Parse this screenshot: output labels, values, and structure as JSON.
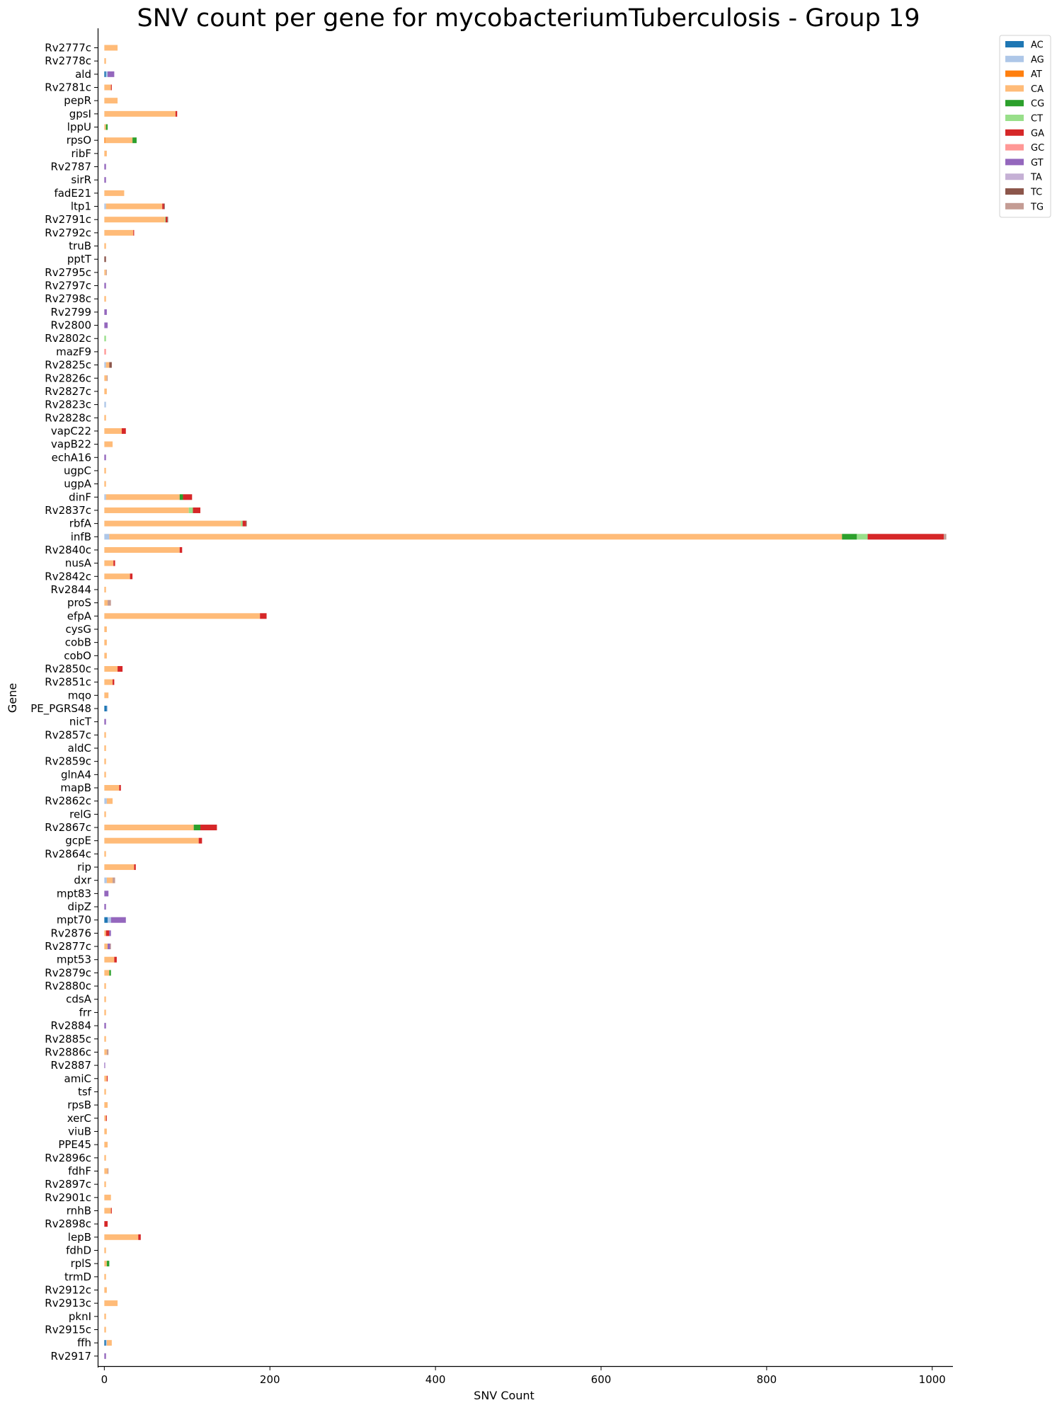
{
  "chart_data": {
    "type": "bar",
    "orientation": "horizontal",
    "stacked": true,
    "title": "SNV count per gene for mycobacteriumTuberculosis - Group 19",
    "xlabel": "SNV Count",
    "ylabel": "Gene",
    "xlim": [
      -8,
      1025
    ],
    "xticks": [
      0,
      200,
      400,
      600,
      800,
      1000
    ],
    "grid": false,
    "legend_position": "top-right",
    "series": [
      {
        "name": "AC",
        "color": "#1f77b4"
      },
      {
        "name": "AG",
        "color": "#aec7e8"
      },
      {
        "name": "AT",
        "color": "#ff7f0e"
      },
      {
        "name": "CA",
        "color": "#ffbb78"
      },
      {
        "name": "CG",
        "color": "#2ca02c"
      },
      {
        "name": "CT",
        "color": "#98df8a"
      },
      {
        "name": "GA",
        "color": "#d62728"
      },
      {
        "name": "GC",
        "color": "#ff9896"
      },
      {
        "name": "GT",
        "color": "#9467bd"
      },
      {
        "name": "TA",
        "color": "#c5b0d5"
      },
      {
        "name": "TC",
        "color": "#8c564b"
      },
      {
        "name": "TG",
        "color": "#c49c94"
      }
    ],
    "categories": [
      {
        "gene": "Rv2777c",
        "values": {
          "CA": 16
        }
      },
      {
        "gene": "Rv2778c",
        "values": {
          "CA": 2
        }
      },
      {
        "gene": "ald",
        "values": {
          "AC": 2,
          "AG": 2,
          "GT": 8
        }
      },
      {
        "gene": "Rv2781c",
        "values": {
          "CA": 8,
          "GA": 1
        }
      },
      {
        "gene": "pepR",
        "values": {
          "CA": 16
        }
      },
      {
        "gene": "gpsI",
        "values": {
          "CA": 86,
          "GA": 2
        }
      },
      {
        "gene": "lppU",
        "values": {
          "CA": 2,
          "CG": 2
        }
      },
      {
        "gene": "rpsO",
        "values": {
          "AT": 1,
          "CA": 33,
          "CG": 5
        }
      },
      {
        "gene": "ribF",
        "values": {
          "CA": 3
        }
      },
      {
        "gene": "Rv2787",
        "values": {
          "GT": 2
        }
      },
      {
        "gene": "sirR",
        "values": {
          "GT": 2
        }
      },
      {
        "gene": "fadE21",
        "values": {
          "CA": 24
        }
      },
      {
        "gene": "ltp1",
        "values": {
          "AG": 2,
          "CA": 68,
          "GA": 2,
          "TC": 1
        }
      },
      {
        "gene": "Rv2791c",
        "values": {
          "CA": 73,
          "CT": 1,
          "GA": 2,
          "TC": 1
        }
      },
      {
        "gene": "Rv2792c",
        "values": {
          "CA": 35,
          "GA": 1
        }
      },
      {
        "gene": "truB",
        "values": {
          "CA": 2
        }
      },
      {
        "gene": "pptT",
        "values": {
          "TC": 2
        }
      },
      {
        "gene": "Rv2795c",
        "values": {
          "CA": 2,
          "TG": 1
        }
      },
      {
        "gene": "Rv2797c",
        "values": {
          "GT": 2
        }
      },
      {
        "gene": "Rv2798c",
        "values": {
          "CA": 2
        }
      },
      {
        "gene": "Rv2799",
        "values": {
          "GT": 3
        }
      },
      {
        "gene": "Rv2800",
        "values": {
          "GT": 4
        }
      },
      {
        "gene": "Rv2802c",
        "values": {
          "CT": 2
        }
      },
      {
        "gene": "mazF9",
        "values": {
          "GC": 2
        }
      },
      {
        "gene": "Rv2825c",
        "values": {
          "AG": 2,
          "CA": 4,
          "TC": 3
        }
      },
      {
        "gene": "Rv2826c",
        "values": {
          "CA": 3,
          "TG": 1
        }
      },
      {
        "gene": "Rv2827c",
        "values": {
          "CA": 3
        }
      },
      {
        "gene": "Rv2823c",
        "values": {
          "AG": 2
        }
      },
      {
        "gene": "Rv2828c",
        "values": {
          "CA": 2
        }
      },
      {
        "gene": "vapC22",
        "values": {
          "CA": 21,
          "GA": 5
        }
      },
      {
        "gene": "vapB22",
        "values": {
          "CA": 10
        }
      },
      {
        "gene": "echA16",
        "values": {
          "GT": 2
        }
      },
      {
        "gene": "ugpC",
        "values": {
          "CA": 2
        }
      },
      {
        "gene": "ugpA",
        "values": {
          "CA": 2
        }
      },
      {
        "gene": "dinF",
        "values": {
          "AG": 2,
          "CA": 89,
          "CG": 4,
          "GA": 11
        }
      },
      {
        "gene": "Rv2837c",
        "values": {
          "CA": 102,
          "CT": 5,
          "GA": 9
        }
      },
      {
        "gene": "rbfA",
        "values": {
          "CA": 165,
          "CT": 2,
          "GA": 4,
          "TC": 1
        }
      },
      {
        "gene": "infB",
        "values": {
          "AG": 6,
          "CA": 885,
          "CG": 18,
          "CT": 13,
          "GA": 92,
          "TG": 3
        }
      },
      {
        "gene": "Rv2840c",
        "values": {
          "CA": 91,
          "GA": 3
        }
      },
      {
        "gene": "nusA",
        "values": {
          "CA": 11,
          "GA": 2
        }
      },
      {
        "gene": "Rv2842c",
        "values": {
          "CA": 31,
          "GA": 3
        }
      },
      {
        "gene": "Rv2844",
        "values": {
          "CA": 2
        }
      },
      {
        "gene": "proS",
        "values": {
          "CA": 4,
          "TG": 4
        }
      },
      {
        "gene": "efpA",
        "values": {
          "CA": 188,
          "GA": 8
        }
      },
      {
        "gene": "cysG",
        "values": {
          "CA": 3
        }
      },
      {
        "gene": "cobB",
        "values": {
          "CA": 3
        }
      },
      {
        "gene": "cobO",
        "values": {
          "CA": 3
        }
      },
      {
        "gene": "Rv2850c",
        "values": {
          "CA": 16,
          "GA": 6
        }
      },
      {
        "gene": "Rv2851c",
        "values": {
          "CA": 10,
          "GA": 2
        }
      },
      {
        "gene": "mqo",
        "values": {
          "CA": 5
        }
      },
      {
        "gene": "PE_PGRS48",
        "values": {
          "AC": 3,
          "AG": 1
        }
      },
      {
        "gene": "nicT",
        "values": {
          "GT": 2
        }
      },
      {
        "gene": "Rv2857c",
        "values": {
          "CA": 2
        }
      },
      {
        "gene": "aldC",
        "values": {
          "CA": 2
        }
      },
      {
        "gene": "Rv2859c",
        "values": {
          "CA": 2
        }
      },
      {
        "gene": "glnA4",
        "values": {
          "CA": 2
        }
      },
      {
        "gene": "mapB",
        "values": {
          "CA": 18,
          "GA": 2
        }
      },
      {
        "gene": "Rv2862c",
        "values": {
          "AG": 3,
          "CA": 7
        }
      },
      {
        "gene": "relG",
        "values": {
          "CA": 2
        }
      },
      {
        "gene": "Rv2867c",
        "values": {
          "CA": 108,
          "CG": 8,
          "GA": 20
        }
      },
      {
        "gene": "gcpE",
        "values": {
          "CA": 114,
          "GA": 4
        }
      },
      {
        "gene": "Rv2864c",
        "values": {
          "CA": 2
        }
      },
      {
        "gene": "rip",
        "values": {
          "CA": 36,
          "GA": 2
        }
      },
      {
        "gene": "dxr",
        "values": {
          "CA": 7,
          "AG": 3,
          "TG": 3
        }
      },
      {
        "gene": "mpt83",
        "values": {
          "GT": 5
        }
      },
      {
        "gene": "dipZ",
        "values": {
          "GT": 2
        }
      },
      {
        "gene": "mpt70",
        "values": {
          "AC": 4,
          "AG": 4,
          "GT": 18
        }
      },
      {
        "gene": "Rv2876",
        "values": {
          "CA": 2,
          "GA": 4,
          "GT": 2
        }
      },
      {
        "gene": "Rv2877c",
        "values": {
          "CA": 4,
          "GT": 3,
          "TG": 1
        }
      },
      {
        "gene": "mpt53",
        "values": {
          "CA": 12,
          "GA": 3
        }
      },
      {
        "gene": "Rv2879c",
        "values": {
          "CA": 6,
          "CG": 2
        }
      },
      {
        "gene": "Rv2880c",
        "values": {
          "CA": 2
        }
      },
      {
        "gene": "cdsA",
        "values": {
          "CA": 2
        }
      },
      {
        "gene": "frr",
        "values": {
          "CA": 2
        }
      },
      {
        "gene": "Rv2884",
        "values": {
          "GT": 2
        }
      },
      {
        "gene": "Rv2885c",
        "values": {
          "CA": 2
        }
      },
      {
        "gene": "Rv2886c",
        "values": {
          "CA": 3,
          "TG": 2
        }
      },
      {
        "gene": "Rv2887",
        "values": {
          "GT": 1
        }
      },
      {
        "gene": "amiC",
        "values": {
          "CA": 3,
          "GA": 1
        }
      },
      {
        "gene": "tsf",
        "values": {
          "CA": 2
        }
      },
      {
        "gene": "rpsB",
        "values": {
          "CA": 4
        }
      },
      {
        "gene": "xerC",
        "values": {
          "CA": 2,
          "GA": 1
        }
      },
      {
        "gene": "viuB",
        "values": {
          "CA": 3
        }
      },
      {
        "gene": "PPE45",
        "values": {
          "CA": 4
        }
      },
      {
        "gene": "Rv2896c",
        "values": {
          "CA": 2
        }
      },
      {
        "gene": "fdhF",
        "values": {
          "CA": 4,
          "TG": 1
        }
      },
      {
        "gene": "Rv2897c",
        "values": {
          "CA": 2
        }
      },
      {
        "gene": "Rv2901c",
        "values": {
          "CA": 8
        }
      },
      {
        "gene": "rnhB",
        "values": {
          "CA": 8,
          "GA": 1
        }
      },
      {
        "gene": "Rv2898c",
        "values": {
          "GA": 4
        }
      },
      {
        "gene": "lepB",
        "values": {
          "CA": 41,
          "GA": 3
        }
      },
      {
        "gene": "fdhD",
        "values": {
          "CA": 2
        }
      },
      {
        "gene": "rplS",
        "values": {
          "CA": 3,
          "CG": 3
        }
      },
      {
        "gene": "trmD",
        "values": {
          "CA": 2
        }
      },
      {
        "gene": "Rv2912c",
        "values": {
          "CA": 3
        }
      },
      {
        "gene": "Rv2913c",
        "values": {
          "CA": 16
        }
      },
      {
        "gene": "pknI",
        "values": {
          "CA": 2
        }
      },
      {
        "gene": "Rv2915c",
        "values": {
          "CA": 2
        }
      },
      {
        "gene": "ffh",
        "values": {
          "AC": 2,
          "AG": 1,
          "CA": 6
        }
      },
      {
        "gene": "Rv2917",
        "values": {
          "GT": 2
        }
      }
    ]
  }
}
